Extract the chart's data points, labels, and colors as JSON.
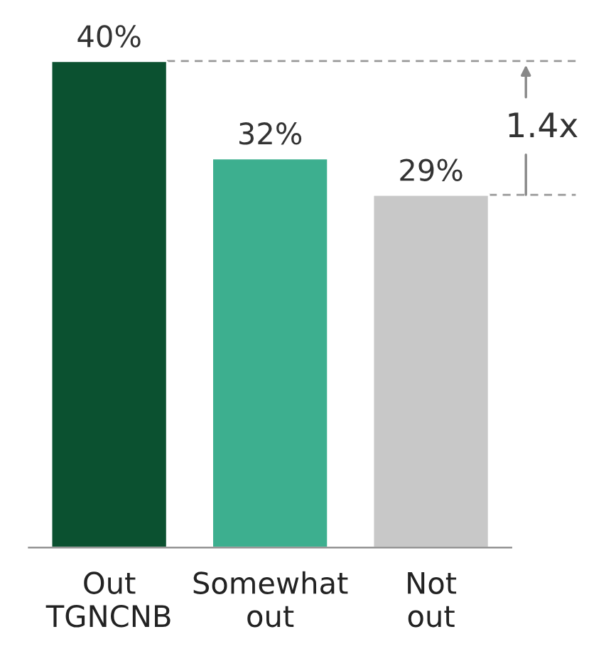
{
  "chart_data": {
    "type": "bar",
    "categories": [
      "Out\nTGNCNB",
      "Somewhat\nout",
      "Not\nout"
    ],
    "values": [
      40,
      32,
      29
    ],
    "colors": [
      "#0b5130",
      "#3daf8f",
      "#c8c8c8"
    ],
    "data_labels": true,
    "value_labels": [
      "40%",
      "32%",
      "29%"
    ],
    "ref_lines": [
      {
        "axis": "y",
        "value": 40,
        "color": "#999999",
        "line_style": "dashed"
      },
      {
        "axis": "y",
        "value": 29,
        "color": "#999999",
        "line_style": "dashed"
      }
    ],
    "annotations": [
      "1.4x"
    ],
    "grid": false,
    "legend": false
  }
}
